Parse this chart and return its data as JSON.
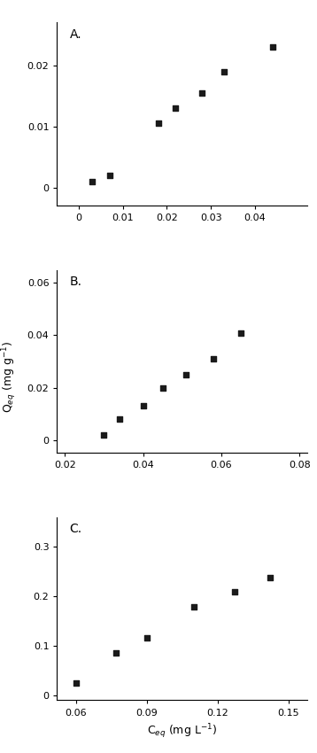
{
  "subplots": [
    {
      "label": "A.",
      "x_data": [
        0.003,
        0.007,
        0.018,
        0.022,
        0.028,
        0.033,
        0.044
      ],
      "y_data": [
        0.001,
        0.002,
        0.0105,
        0.013,
        0.0155,
        0.019,
        0.023
      ],
      "xlim": [
        -0.005,
        0.052
      ],
      "ylim": [
        -0.003,
        0.027
      ],
      "xticks": [
        0.0,
        0.01,
        0.02,
        0.03,
        0.04
      ],
      "yticks": [
        0.0,
        0.01,
        0.02
      ],
      "xticklabels": [
        "0",
        "0.01",
        "0.02",
        "0.03",
        "0.04"
      ],
      "yticklabels": [
        "0",
        "0.01",
        "0.02"
      ],
      "fit_xmin": 0.001,
      "fit_xmax": 0.048
    },
    {
      "label": "B.",
      "x_data": [
        0.03,
        0.034,
        0.04,
        0.045,
        0.051,
        0.058,
        0.065
      ],
      "y_data": [
        0.002,
        0.008,
        0.013,
        0.02,
        0.025,
        0.031,
        0.041
      ],
      "xlim": [
        0.018,
        0.082
      ],
      "ylim": [
        -0.005,
        0.065
      ],
      "xticks": [
        0.02,
        0.04,
        0.06,
        0.08
      ],
      "yticks": [
        0.0,
        0.02,
        0.04,
        0.06
      ],
      "xticklabels": [
        "0.02",
        "0.04",
        "0.06",
        "0.08"
      ],
      "yticklabels": [
        "0",
        "0.02",
        "0.04",
        "0.06"
      ],
      "fit_xmin": 0.025,
      "fit_xmax": 0.079
    },
    {
      "label": "C.",
      "x_data": [
        0.06,
        0.077,
        0.09,
        0.11,
        0.127,
        0.142
      ],
      "y_data": [
        0.025,
        0.085,
        0.117,
        0.178,
        0.21,
        0.238
      ],
      "xlim": [
        0.052,
        0.158
      ],
      "ylim": [
        -0.01,
        0.36
      ],
      "xticks": [
        0.06,
        0.09,
        0.12,
        0.15
      ],
      "yticks": [
        0.0,
        0.1,
        0.2,
        0.3
      ],
      "xticklabels": [
        "0.06",
        "0.09",
        "0.12",
        "0.15"
      ],
      "yticklabels": [
        "0",
        "0.1",
        "0.2",
        "0.3"
      ],
      "fit_xmin": 0.055,
      "fit_xmax": 0.15
    }
  ],
  "ylabel": "Q$_{eq}$ (mg g$^{-1}$)",
  "xlabel": "C$_{eq}$ (mg L$^{-1}$)",
  "line_color": "#888888",
  "marker_color": "#1a1a1a",
  "bg_color": "#ffffff",
  "tick_fontsize": 8,
  "label_fontsize": 9
}
